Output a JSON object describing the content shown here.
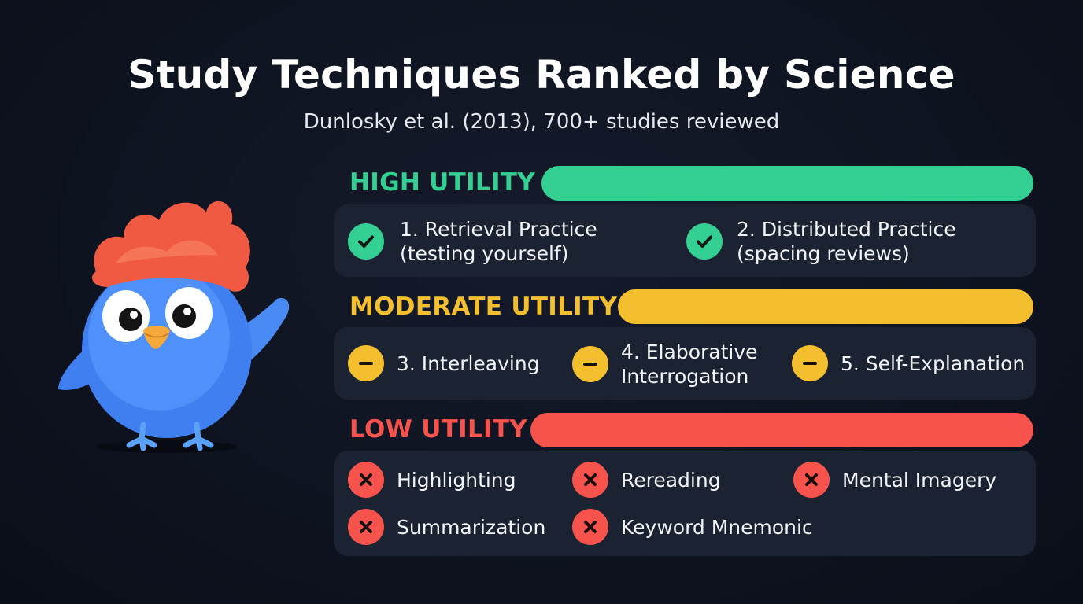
{
  "header": {
    "title": "Study Techniques Ranked by Science",
    "subtitle": "Dunlosky et al. (2013), 700+ studies reviewed"
  },
  "colors": {
    "background": "#0e1320",
    "panel": "#1b2231",
    "high": "#34cf92",
    "moderate": "#f4bf2f",
    "low": "#f5534c"
  },
  "tiers": {
    "high": {
      "label": "HIGH UTILITY",
      "icon": "check-icon",
      "items": [
        {
          "line1": "1. Retrieval Practice",
          "line2": "(testing yourself)"
        },
        {
          "line1": "2. Distributed Practice",
          "line2": "(spacing reviews)"
        }
      ]
    },
    "moderate": {
      "label": "MODERATE UTILITY",
      "icon": "minus-icon",
      "items": [
        {
          "line1": "3. Interleaving",
          "line2": ""
        },
        {
          "line1": "4. Elaborative",
          "line2": "Interrogation"
        },
        {
          "line1": "5. Self-Explanation",
          "line2": ""
        }
      ]
    },
    "low": {
      "label": "LOW UTILITY",
      "icon": "x-icon",
      "items": [
        {
          "line1": "Highlighting"
        },
        {
          "line1": "Rereading"
        },
        {
          "line1": "Mental Imagery"
        },
        {
          "line1": "Summarization"
        },
        {
          "line1": "Keyword Mnemonic"
        }
      ]
    }
  },
  "mascot": {
    "icon": "blue-bird-mascot-icon"
  }
}
